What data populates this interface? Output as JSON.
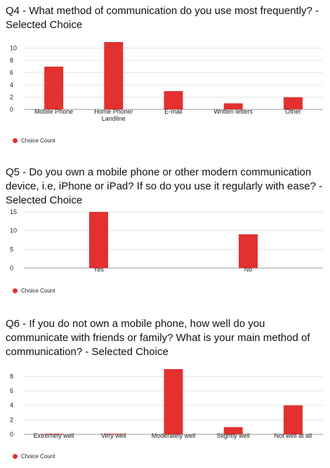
{
  "chart_data": [
    {
      "type": "bar",
      "title": "Q4 - What method of communication do you use most frequently? - Selected Choice",
      "categories": [
        "Mobile Phone",
        "Home Phone/\nLandline",
        "E-mail",
        "Written letters",
        "Other"
      ],
      "series": [
        {
          "name": "Choice Count",
          "values": [
            7,
            11,
            3,
            1,
            2
          ]
        }
      ],
      "ylim": [
        0,
        11
      ],
      "yticks": [
        0,
        2,
        4,
        6,
        8,
        10
      ],
      "grid": true,
      "legend_position": "bottom-left",
      "color": "#e2312f"
    },
    {
      "type": "bar",
      "title": "Q5 - Do you own a mobile phone or other modern communication device, i.e, iPhone or iPad? If so do you use it regularly with ease? - Selected Choice",
      "categories": [
        "Yes",
        "No"
      ],
      "series": [
        {
          "name": "Choice Count",
          "values": [
            15,
            9
          ]
        }
      ],
      "ylim": [
        0,
        15
      ],
      "yticks": [
        0,
        5,
        10,
        15
      ],
      "grid": true,
      "legend_position": "bottom-left",
      "color": "#e2312f"
    },
    {
      "type": "bar",
      "title": "Q6 - If you do not own a mobile phone, how well do you communicate with friends or family? What is your main method of communication? - Selected Choice",
      "categories": [
        "Extremely well",
        "Very well",
        "Moderately well",
        "Slightly well",
        "Not well at all"
      ],
      "series": [
        {
          "name": "Choice Count",
          "values": [
            0,
            0,
            9,
            1,
            4
          ]
        }
      ],
      "ylim": [
        0,
        9
      ],
      "yticks": [
        0,
        2,
        4,
        6,
        8
      ],
      "grid": true,
      "legend_position": "bottom-left",
      "color": "#e2312f"
    }
  ]
}
